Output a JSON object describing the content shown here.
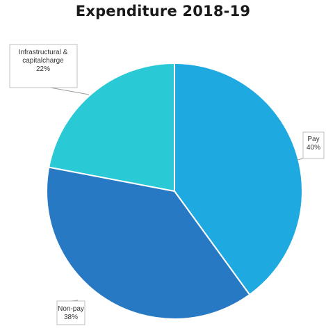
{
  "chart_data": {
    "type": "pie",
    "title": "Expenditure 2018-19",
    "slices": [
      {
        "name": "Pay",
        "value": 40,
        "label_text": "40%",
        "color": "#1fa9e1"
      },
      {
        "name": "Non-pay",
        "value": 38,
        "label_text": "38%",
        "color": "#2879c3"
      },
      {
        "name": "Infrastructural & capitalcharge",
        "label_lines": [
          "Infrastructural &",
          "capitalcharge"
        ],
        "value": 22,
        "label_text": "22%",
        "color": "#29c9d6"
      }
    ],
    "start_angle_deg": 0,
    "direction": "clockwise",
    "slice_border_color": "#ffffff",
    "callout_line_color": "#9a9a9a",
    "label_box_border": "#bfbfbf"
  }
}
